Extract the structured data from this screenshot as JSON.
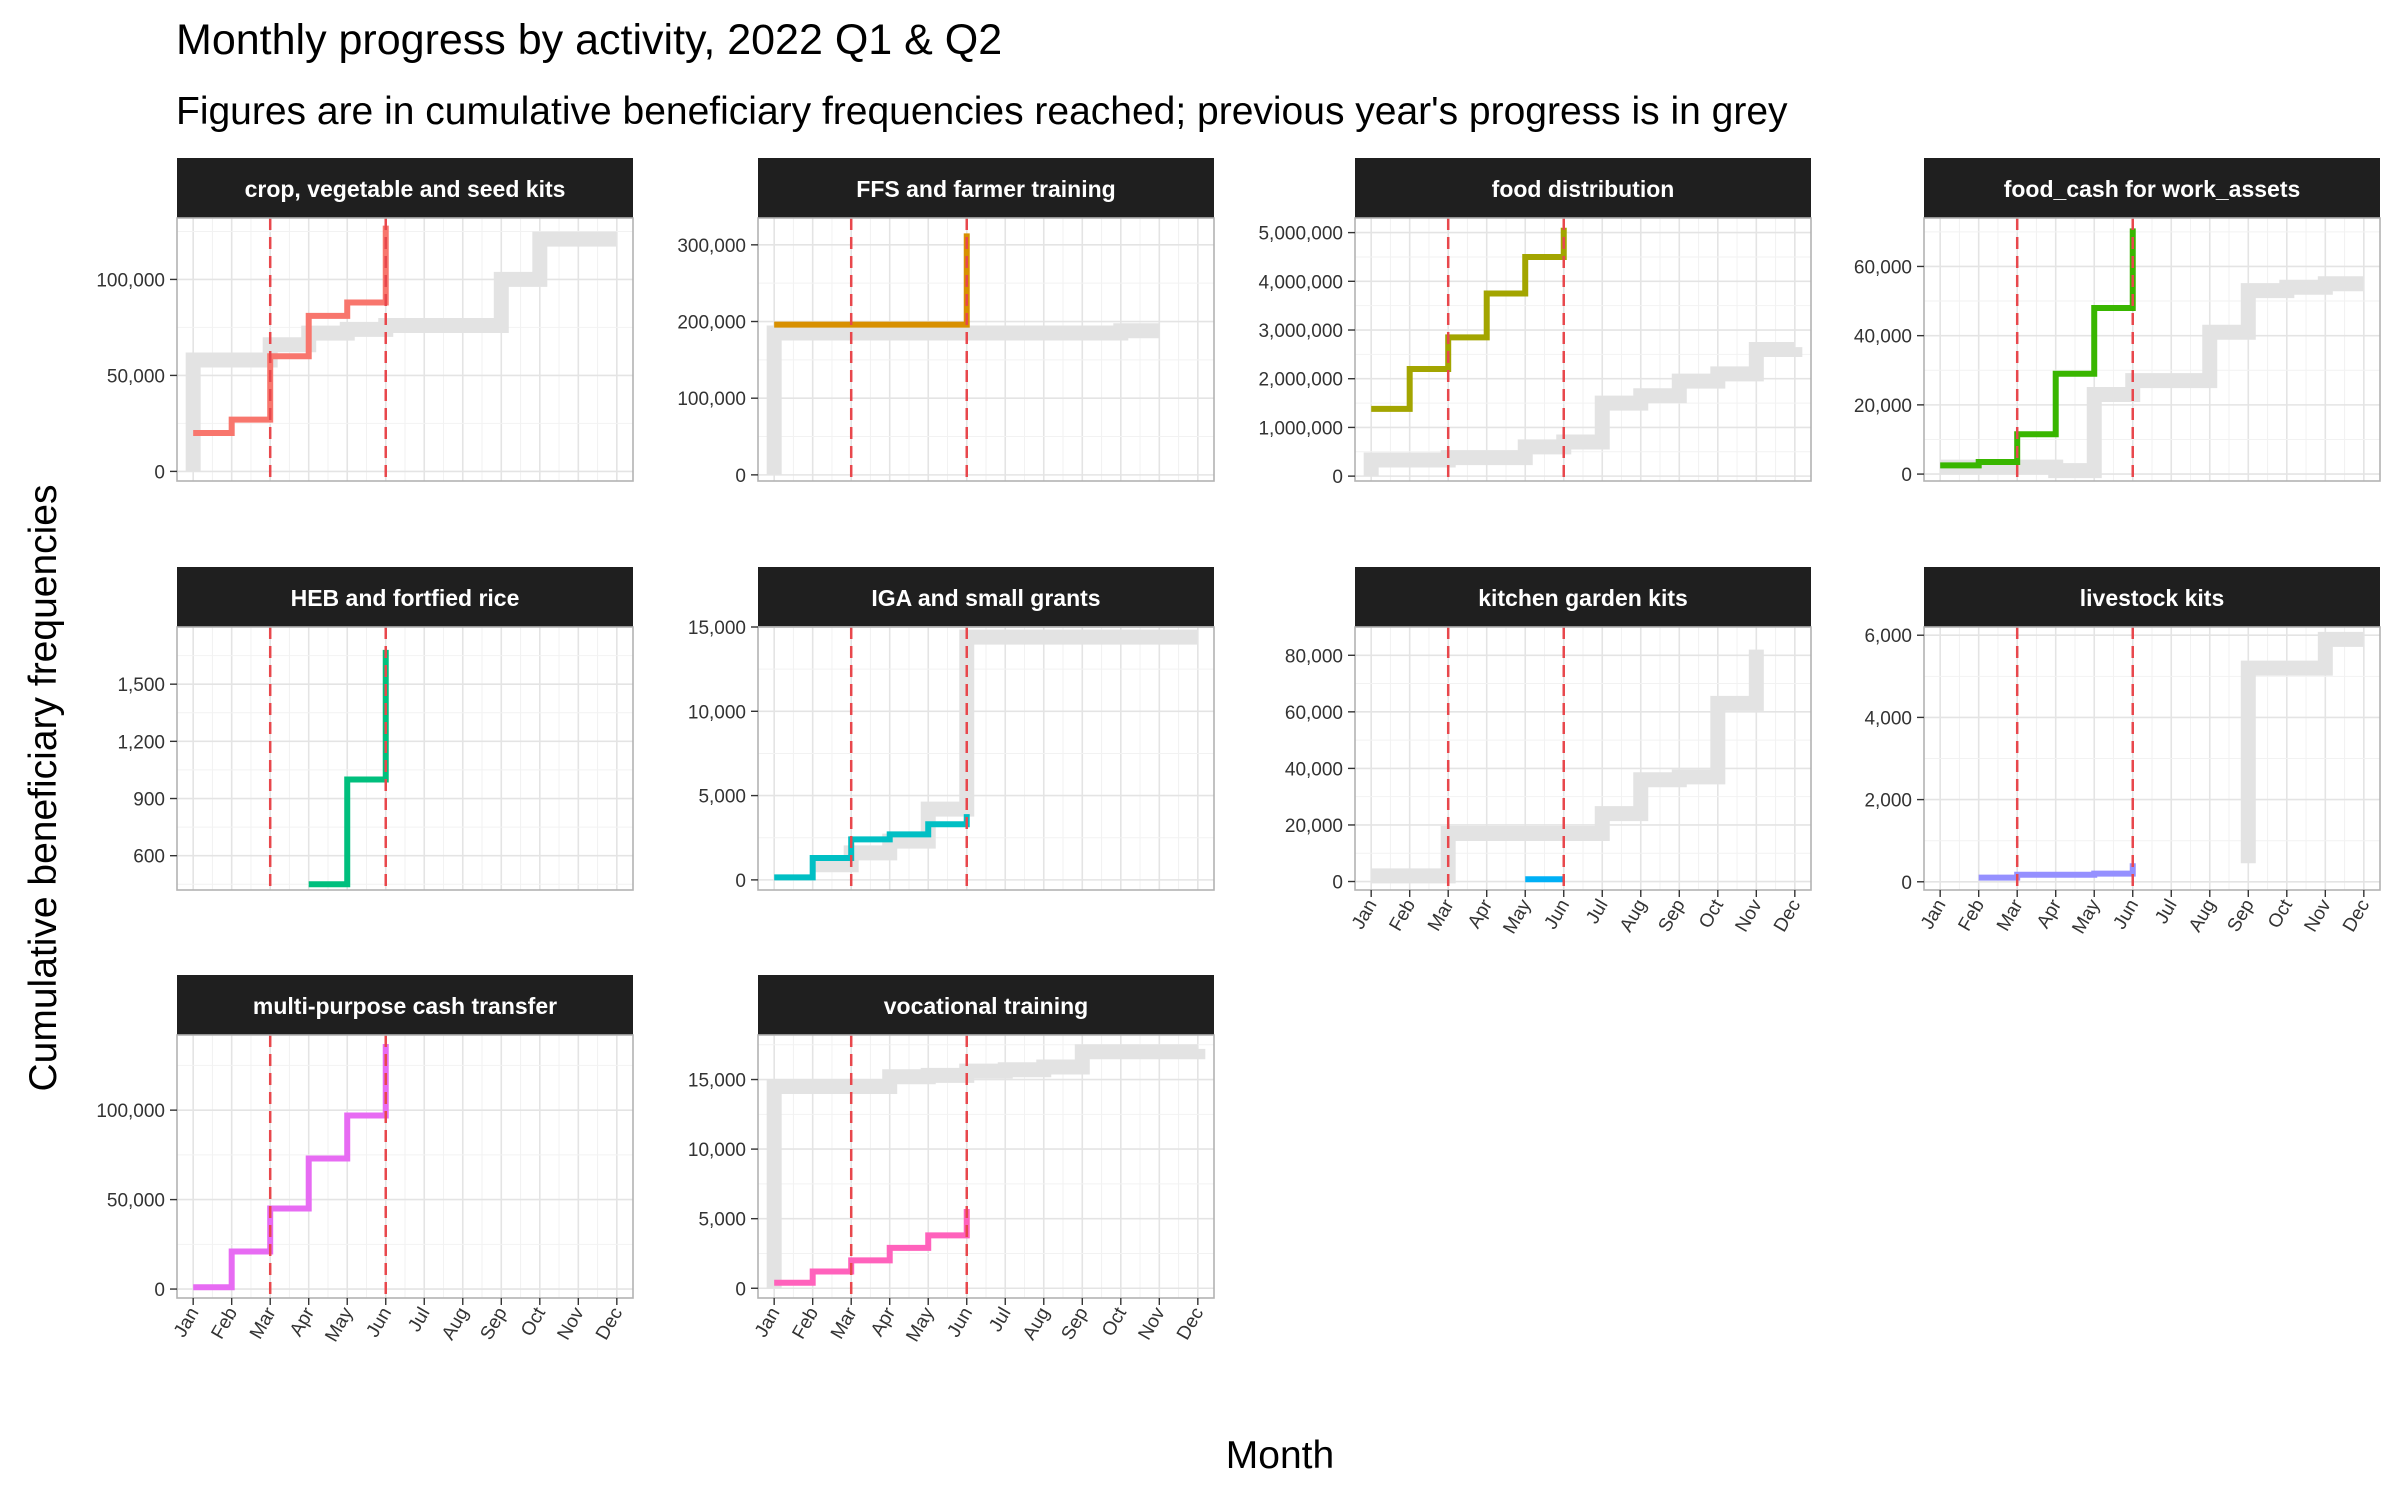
{
  "chart_data": {
    "type": "line",
    "title": "Monthly progress by activity, 2022 Q1 & Q2",
    "subtitle": "Figures are in cumulative beneficiary frequencies reached; previous year's progress is in grey",
    "xlabel": "Month",
    "ylabel": "Cumulative beneficiary frequencies",
    "x_tick_labels": [
      "Jan",
      "Feb",
      "Mar",
      "Apr",
      "May",
      "Jun",
      "Jul",
      "Aug",
      "Sep",
      "Oct",
      "Nov",
      "Dec"
    ],
    "reference_lines_at": [
      "Mar",
      "Jun"
    ],
    "reference_line_color": "#e8474c",
    "previous_year_color": "#e3e3e3",
    "grid": true,
    "facets": [
      {
        "name": "crop, vegetable and seed kits",
        "color": "#f8766d",
        "ylim": [
          -5000,
          132000
        ],
        "yticks": [
          0,
          50000,
          100000
        ],
        "tick_labels": [
          "0",
          "50,000",
          "100,000"
        ],
        "current_year": [
          [
            1,
            20000
          ],
          [
            2,
            27000
          ],
          [
            3,
            60000
          ],
          [
            4,
            81000
          ],
          [
            5,
            88000
          ],
          [
            6,
            128000
          ]
        ],
        "previous_year": [
          [
            1,
            0
          ],
          [
            1,
            58000
          ],
          [
            3,
            66000
          ],
          [
            4,
            72000
          ],
          [
            5,
            74000
          ],
          [
            6,
            76000
          ],
          [
            9,
            77000
          ],
          [
            9,
            100000
          ],
          [
            10,
            100000
          ],
          [
            10,
            121000
          ],
          [
            12,
            121000
          ]
        ]
      },
      {
        "name": "FFS and farmer training",
        "color": "#d89000",
        "ylim": [
          -8000,
          335000
        ],
        "yticks": [
          0,
          100000,
          200000,
          300000
        ],
        "tick_labels": [
          "0",
          "100,000",
          "200,000",
          "300,000"
        ],
        "current_year": [
          [
            1,
            196000
          ],
          [
            6,
            196000
          ],
          [
            6,
            315000
          ]
        ],
        "previous_year": [
          [
            1,
            0
          ],
          [
            1,
            185000
          ],
          [
            6,
            185000
          ],
          [
            9,
            185000
          ],
          [
            10,
            188000
          ],
          [
            11,
            188000
          ]
        ]
      },
      {
        "name": "food distribution",
        "color": "#a3a500",
        "ylim": [
          -100000,
          5300000
        ],
        "yticks": [
          0,
          1000000,
          2000000,
          3000000,
          4000000,
          5000000
        ],
        "tick_labels": [
          "0",
          "1,000,000",
          "2,000,000",
          "3,000,000",
          "4,000,000",
          "5,000,000"
        ],
        "current_year": [
          [
            1,
            1380000
          ],
          [
            2,
            2200000
          ],
          [
            3,
            2850000
          ],
          [
            4,
            3750000
          ],
          [
            5,
            4500000
          ],
          [
            6,
            5100000
          ]
        ],
        "previous_year": [
          [
            1,
            0
          ],
          [
            1,
            330000
          ],
          [
            3,
            380000
          ],
          [
            5,
            420000
          ],
          [
            5,
            600000
          ],
          [
            6,
            700000
          ],
          [
            7,
            800000
          ],
          [
            7,
            1500000
          ],
          [
            8,
            1650000
          ],
          [
            9,
            1950000
          ],
          [
            10,
            2100000
          ],
          [
            11,
            2600000
          ],
          [
            12,
            2650000
          ]
        ]
      },
      {
        "name": "food_cash for work_assets",
        "color": "#39b600",
        "ylim": [
          -2000,
          74000
        ],
        "yticks": [
          0,
          20000,
          40000,
          60000
        ],
        "tick_labels": [
          "0",
          "20,000",
          "40,000",
          "60,000"
        ],
        "current_year": [
          [
            1,
            2500
          ],
          [
            2,
            3500
          ],
          [
            3,
            11500
          ],
          [
            4,
            29000
          ],
          [
            5,
            48000
          ],
          [
            6,
            71000
          ]
        ],
        "previous_year": [
          [
            1,
            2000
          ],
          [
            3,
            2000
          ],
          [
            4,
            1000
          ],
          [
            5,
            17000
          ],
          [
            5,
            23000
          ],
          [
            6,
            27000
          ],
          [
            7,
            27000
          ],
          [
            8,
            41000
          ],
          [
            9,
            53000
          ],
          [
            10,
            54000
          ],
          [
            11,
            55000
          ],
          [
            12,
            55000
          ]
        ]
      },
      {
        "name": "HEB and fortfied rice",
        "color": "#00bf7d",
        "ylim": [
          420,
          1800
        ],
        "yticks": [
          600,
          900,
          1200,
          1500
        ],
        "tick_labels": [
          "600",
          "900",
          "1,200",
          "1,500"
        ],
        "current_year": [
          [
            4,
            450
          ],
          [
            5,
            1000
          ],
          [
            6,
            1680
          ]
        ],
        "previous_year": []
      },
      {
        "name": "IGA and small grants",
        "color": "#00bfc4",
        "ylim": [
          -600,
          15000
        ],
        "yticks": [
          0,
          5000,
          10000,
          15000
        ],
        "tick_labels": [
          "0",
          "5,000",
          "10,000",
          "15,000"
        ],
        "current_year": [
          [
            1,
            150
          ],
          [
            2,
            1300
          ],
          [
            3,
            2400
          ],
          [
            4,
            2700
          ],
          [
            5,
            3300
          ],
          [
            6,
            3900
          ]
        ],
        "previous_year": [
          [
            2,
            900
          ],
          [
            3,
            1600
          ],
          [
            4,
            2300
          ],
          [
            5,
            4200
          ],
          [
            6,
            4200
          ],
          [
            6,
            14400
          ],
          [
            12,
            14400
          ]
        ]
      },
      {
        "name": "kitchen garden kits",
        "color": "#00b0f6",
        "ylim": [
          -3000,
          90000
        ],
        "yticks": [
          0,
          20000,
          40000,
          60000,
          80000
        ],
        "tick_labels": [
          "0",
          "20,000",
          "40,000",
          "60,000",
          "80,000"
        ],
        "current_year": [
          [
            5,
            800
          ],
          [
            6,
            800
          ]
        ],
        "previous_year": [
          [
            1,
            2000
          ],
          [
            3,
            2000
          ],
          [
            3,
            17000
          ],
          [
            7,
            17000
          ],
          [
            7,
            24000
          ],
          [
            8,
            36000
          ],
          [
            9,
            37000
          ],
          [
            10,
            63000
          ],
          [
            11,
            82000
          ]
        ]
      },
      {
        "name": "livestock kits",
        "color": "#9590ff",
        "ylim": [
          -200,
          6200
        ],
        "yticks": [
          0,
          2000,
          4000,
          6000
        ],
        "tick_labels": [
          "0",
          "2,000",
          "4,000",
          "6,000"
        ],
        "current_year": [
          [
            2,
            100
          ],
          [
            3,
            170
          ],
          [
            5,
            200
          ],
          [
            6,
            450
          ]
        ],
        "previous_year": [
          [
            9,
            450
          ],
          [
            9,
            5200
          ],
          [
            11,
            5200
          ],
          [
            11,
            5900
          ],
          [
            12,
            5900
          ]
        ]
      },
      {
        "name": "multi-purpose cash transfer",
        "color": "#e76bf3",
        "ylim": [
          -5000,
          142000
        ],
        "yticks": [
          0,
          50000,
          100000
        ],
        "tick_labels": [
          "0",
          "50,000",
          "100,000"
        ],
        "current_year": [
          [
            1,
            1000
          ],
          [
            2,
            21000
          ],
          [
            3,
            45000
          ],
          [
            4,
            73000
          ],
          [
            5,
            97000
          ],
          [
            6,
            137000
          ]
        ],
        "previous_year": []
      },
      {
        "name": "vocational training",
        "color": "#ff62bc",
        "ylim": [
          -700,
          18200
        ],
        "yticks": [
          0,
          5000,
          10000,
          15000
        ],
        "tick_labels": [
          "0",
          "5,000",
          "10,000",
          "15,000"
        ],
        "current_year": [
          [
            1,
            400
          ],
          [
            2,
            1200
          ],
          [
            3,
            2000
          ],
          [
            4,
            2900
          ],
          [
            5,
            3800
          ],
          [
            6,
            5700
          ]
        ],
        "previous_year": [
          [
            1,
            0
          ],
          [
            1,
            14500
          ],
          [
            4,
            14500
          ],
          [
            4,
            15200
          ],
          [
            5,
            15300
          ],
          [
            6,
            15600
          ],
          [
            7,
            15700
          ],
          [
            8,
            15900
          ],
          [
            9,
            16200
          ],
          [
            9,
            17000
          ],
          [
            12,
            17200
          ]
        ]
      }
    ]
  }
}
